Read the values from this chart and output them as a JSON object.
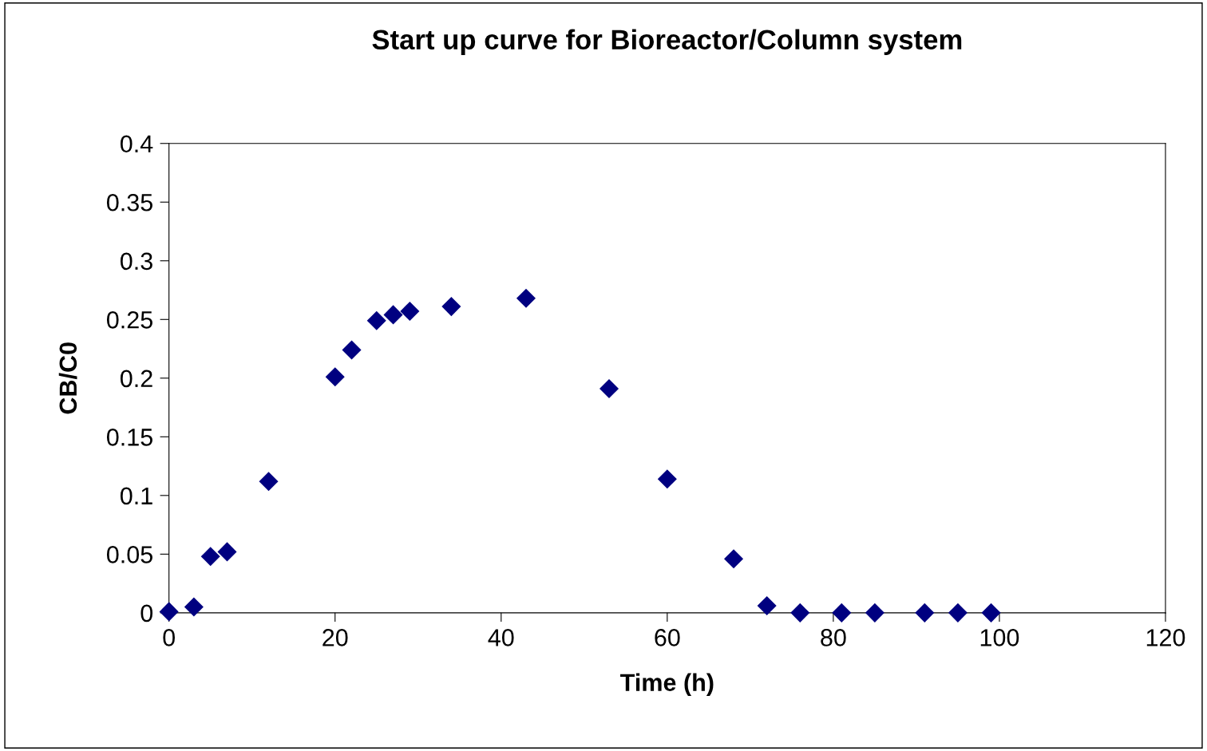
{
  "chart_data": {
    "type": "scatter",
    "title": "Start up curve for Bioreactor/Column system",
    "xlabel": "Time (h)",
    "ylabel": "CB/C0",
    "x": [
      0,
      3,
      5,
      7,
      12,
      20,
      22,
      25,
      27,
      29,
      34,
      43,
      53,
      60,
      68,
      72,
      76,
      81,
      85,
      91,
      95,
      99
    ],
    "series": [
      {
        "color": "#000080",
        "values": [
          0.001,
          0.005,
          0.048,
          0.052,
          0.112,
          0.201,
          0.224,
          0.249,
          0.254,
          0.257,
          0.261,
          0.268,
          0.191,
          0.114,
          0.046,
          0.006,
          0,
          0,
          0,
          0,
          0,
          0
        ]
      }
    ],
    "xlim": [
      0,
      120
    ],
    "xticks": [
      0,
      20,
      40,
      60,
      80,
      100,
      120
    ],
    "ylim": [
      0,
      0.4
    ],
    "yticks": [
      0,
      0.05,
      0.1,
      0.15,
      0.2,
      0.25,
      0.3,
      0.35,
      0.4
    ],
    "marker": "diamond",
    "grid": false,
    "legend": false
  }
}
